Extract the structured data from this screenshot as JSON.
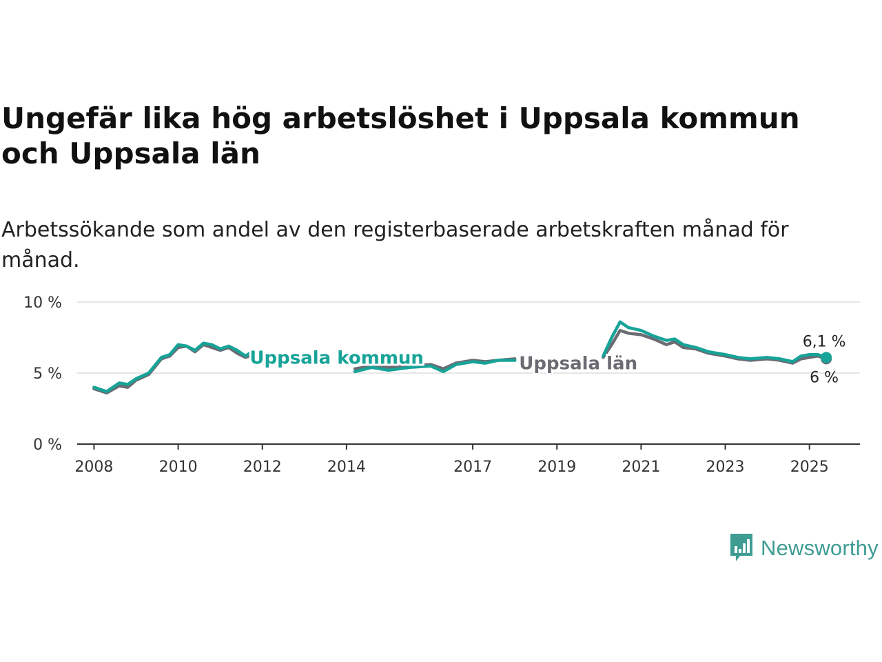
{
  "title": "Ungefär lika hög arbetslöshet i Uppsala kommun och Uppsala län",
  "subtitle": "Arbetssökande som andel av den registerbaserade arbetskraften månad för månad.",
  "brand": {
    "name": "Newsworthy",
    "icon": "newsworthy-logo-icon",
    "color": "#3e9c93"
  },
  "chart_data": {
    "type": "line",
    "title": "Ungefär lika hög arbetslöshet i Uppsala kommun och Uppsala län",
    "subtitle": "Arbetssökande som andel av den registerbaserade arbetskraften månad för månad.",
    "xlabel": "",
    "ylabel": "",
    "ylim": [
      0,
      10
    ],
    "xlim": [
      2007.6,
      2026.2
    ],
    "yticks": [
      {
        "value": 0,
        "label": "0 %"
      },
      {
        "value": 5,
        "label": "5 %"
      },
      {
        "value": 10,
        "label": "10 %"
      }
    ],
    "xticks": [
      {
        "value": 2008,
        "label": "2008"
      },
      {
        "value": 2010,
        "label": "2010"
      },
      {
        "value": 2012,
        "label": "2012"
      },
      {
        "value": 2014,
        "label": "2014"
      },
      {
        "value": 2017,
        "label": "2017"
      },
      {
        "value": 2019,
        "label": "2019"
      },
      {
        "value": 2021,
        "label": "2021"
      },
      {
        "value": 2023,
        "label": "2023"
      },
      {
        "value": 2025,
        "label": "2025"
      }
    ],
    "grid": true,
    "series": [
      {
        "name": "Uppsala län",
        "color": "#6b6b73",
        "end_label": "6 %",
        "points": [
          [
            2008.0,
            3.9
          ],
          [
            2008.3,
            3.6
          ],
          [
            2008.6,
            4.1
          ],
          [
            2008.8,
            4.0
          ],
          [
            2009.0,
            4.5
          ],
          [
            2009.3,
            4.9
          ],
          [
            2009.6,
            6.0
          ],
          [
            2009.8,
            6.2
          ],
          [
            2010.0,
            6.8
          ],
          [
            2010.2,
            6.9
          ],
          [
            2010.4,
            6.5
          ],
          [
            2010.6,
            7.0
          ],
          [
            2010.8,
            6.8
          ],
          [
            2011.0,
            6.6
          ],
          [
            2011.2,
            6.8
          ],
          [
            2011.4,
            6.4
          ],
          [
            2011.6,
            6.1
          ],
          [
            2011.8,
            6.3
          ],
          [
            2014.2,
            5.3
          ],
          [
            2014.6,
            5.5
          ],
          [
            2015.0,
            5.4
          ],
          [
            2015.5,
            5.5
          ],
          [
            2016.0,
            5.6
          ],
          [
            2016.3,
            5.3
          ],
          [
            2016.6,
            5.7
          ],
          [
            2017.0,
            5.9
          ],
          [
            2017.3,
            5.8
          ],
          [
            2017.6,
            5.9
          ],
          [
            2018.0,
            6.0
          ],
          [
            2020.1,
            6.1
          ],
          [
            2020.3,
            7.0
          ],
          [
            2020.5,
            8.0
          ],
          [
            2020.7,
            7.8
          ],
          [
            2021.0,
            7.7
          ],
          [
            2021.3,
            7.4
          ],
          [
            2021.6,
            7.0
          ],
          [
            2021.8,
            7.2
          ],
          [
            2022.0,
            6.8
          ],
          [
            2022.3,
            6.7
          ],
          [
            2022.6,
            6.4
          ],
          [
            2023.0,
            6.2
          ],
          [
            2023.3,
            6.0
          ],
          [
            2023.6,
            5.9
          ],
          [
            2024.0,
            6.0
          ],
          [
            2024.3,
            5.9
          ],
          [
            2024.6,
            5.7
          ],
          [
            2024.8,
            6.0
          ],
          [
            2025.0,
            6.1
          ],
          [
            2025.2,
            6.2
          ],
          [
            2025.4,
            6.0
          ]
        ]
      },
      {
        "name": "Uppsala kommun",
        "color": "#17a398",
        "end_label": "6,1 %",
        "points": [
          [
            2008.0,
            4.0
          ],
          [
            2008.3,
            3.7
          ],
          [
            2008.6,
            4.3
          ],
          [
            2008.8,
            4.2
          ],
          [
            2009.0,
            4.6
          ],
          [
            2009.3,
            5.0
          ],
          [
            2009.6,
            6.1
          ],
          [
            2009.8,
            6.3
          ],
          [
            2010.0,
            7.0
          ],
          [
            2010.2,
            6.9
          ],
          [
            2010.4,
            6.6
          ],
          [
            2010.6,
            7.1
          ],
          [
            2010.8,
            7.0
          ],
          [
            2011.0,
            6.7
          ],
          [
            2011.2,
            6.9
          ],
          [
            2011.4,
            6.6
          ],
          [
            2011.6,
            6.2
          ],
          [
            2011.8,
            6.6
          ],
          [
            2014.2,
            5.1
          ],
          [
            2014.6,
            5.4
          ],
          [
            2015.0,
            5.2
          ],
          [
            2015.5,
            5.4
          ],
          [
            2016.0,
            5.5
          ],
          [
            2016.3,
            5.1
          ],
          [
            2016.6,
            5.6
          ],
          [
            2017.0,
            5.8
          ],
          [
            2017.3,
            5.7
          ],
          [
            2017.6,
            5.9
          ],
          [
            2018.0,
            5.9
          ],
          [
            2020.1,
            6.2
          ],
          [
            2020.3,
            7.5
          ],
          [
            2020.5,
            8.6
          ],
          [
            2020.7,
            8.2
          ],
          [
            2021.0,
            8.0
          ],
          [
            2021.3,
            7.6
          ],
          [
            2021.6,
            7.3
          ],
          [
            2021.8,
            7.4
          ],
          [
            2022.0,
            7.0
          ],
          [
            2022.3,
            6.8
          ],
          [
            2022.6,
            6.5
          ],
          [
            2023.0,
            6.3
          ],
          [
            2023.3,
            6.1
          ],
          [
            2023.6,
            6.0
          ],
          [
            2024.0,
            6.1
          ],
          [
            2024.3,
            6.0
          ],
          [
            2024.6,
            5.8
          ],
          [
            2024.8,
            6.2
          ],
          [
            2025.0,
            6.3
          ],
          [
            2025.2,
            6.3
          ],
          [
            2025.4,
            6.1
          ]
        ]
      }
    ]
  }
}
